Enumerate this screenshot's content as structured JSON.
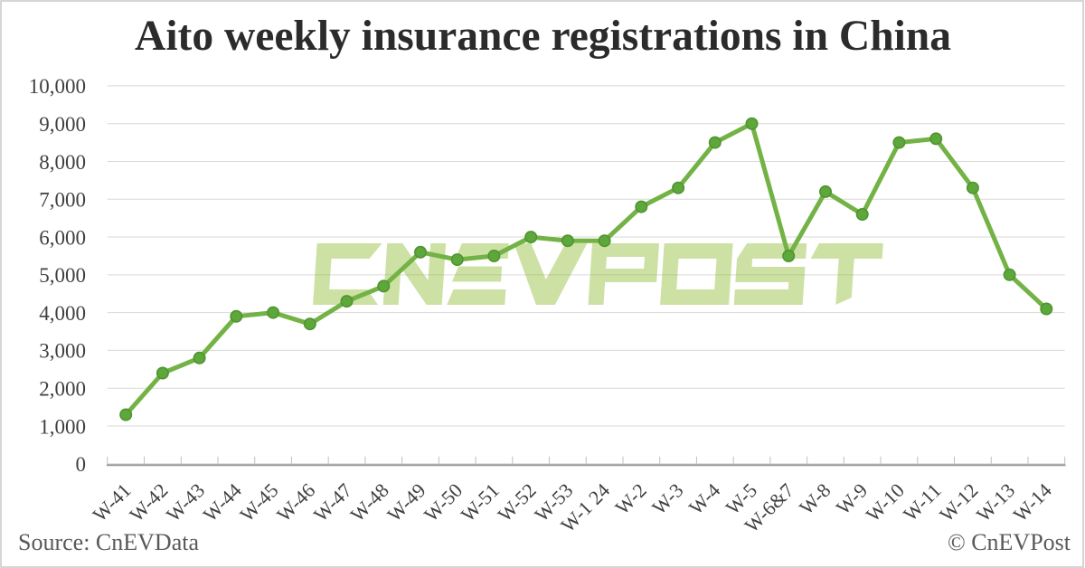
{
  "chart_data": {
    "type": "line",
    "title": "Aito weekly insurance registrations in China",
    "categories": [
      "W-41",
      "W-42",
      "W-43",
      "W-44",
      "W-45",
      "W-46",
      "W-47",
      "W-48",
      "W-49",
      "W-50",
      "W-51",
      "W-52",
      "W-53",
      "W-1 24",
      "W-2",
      "W-3",
      "W-4",
      "W-5",
      "W-6&7",
      "W-8",
      "W-9",
      "W-10",
      "W-11",
      "W-12",
      "W-13",
      "W-14"
    ],
    "values": [
      1300,
      2400,
      2800,
      3900,
      4000,
      3700,
      4300,
      4700,
      5600,
      5400,
      5500,
      6000,
      5900,
      5900,
      6800,
      7300,
      8500,
      9000,
      5500,
      7200,
      6600,
      8500,
      8600,
      7300,
      5000,
      4100
    ],
    "series_name": "Aito weekly insurance registrations",
    "xlabel": "",
    "ylabel": "",
    "ylim": [
      0,
      10000
    ],
    "ytick_step": 1000,
    "ytick_labels": [
      "0",
      "1,000",
      "2,000",
      "3,000",
      "4,000",
      "5,000",
      "6,000",
      "7,000",
      "8,000",
      "9,000",
      "10,000"
    ],
    "grid": true,
    "legend_position": "none",
    "x_labels_rotation_deg": -45,
    "colors": {
      "line": "#73b245",
      "marker_fill": "#5ea73b",
      "marker_edge": "#4f9431",
      "gridline": "#d9d9d9",
      "axis_line": "#999999",
      "tick": "#bfbfbf",
      "axis_label": "#404040",
      "title": "#2b2b2b",
      "footer_text": "#595959",
      "border": "#c9c9c9",
      "watermark": "rgba(140,186,44,0.43)"
    }
  },
  "watermark": {
    "text": "CNEVPOST"
  },
  "footer": {
    "source_label": "Source: CnEVData",
    "copyright_label": "© CnEVPost"
  }
}
